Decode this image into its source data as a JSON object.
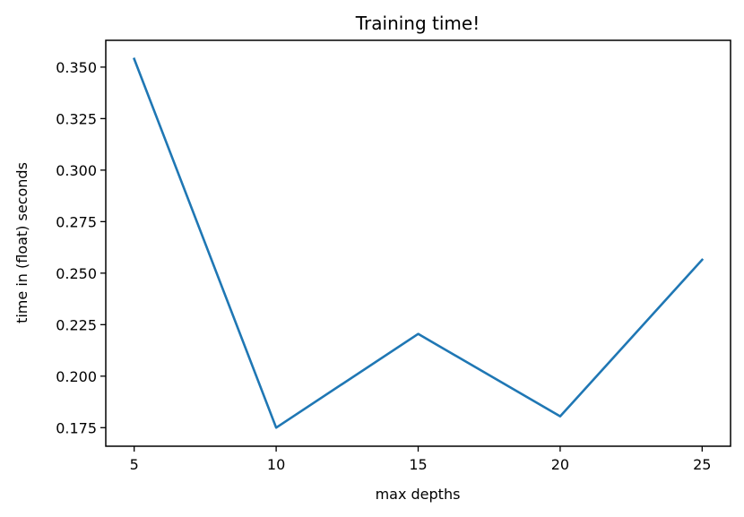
{
  "chart_data": {
    "type": "line",
    "title": "Training time!",
    "xlabel": "max depths",
    "ylabel": "time in (float) seconds",
    "x": [
      5,
      10,
      15,
      20,
      25
    ],
    "series": [
      {
        "values": [
          0.354,
          0.175,
          0.2205,
          0.1805,
          0.2565
        ],
        "color": "#1f77b4"
      }
    ],
    "xlim": [
      4,
      26
    ],
    "ylim": [
      0.166,
      0.363
    ],
    "xticks": [
      5,
      10,
      15,
      20,
      25
    ],
    "xtick_labels": [
      "5",
      "10",
      "15",
      "20",
      "25"
    ],
    "yticks": [
      0.175,
      0.2,
      0.225,
      0.25,
      0.275,
      0.3,
      0.325,
      0.35
    ],
    "ytick_labels": [
      "0.175",
      "0.200",
      "0.225",
      "0.250",
      "0.275",
      "0.300",
      "0.325",
      "0.350"
    ],
    "grid": false,
    "legend": "none"
  }
}
